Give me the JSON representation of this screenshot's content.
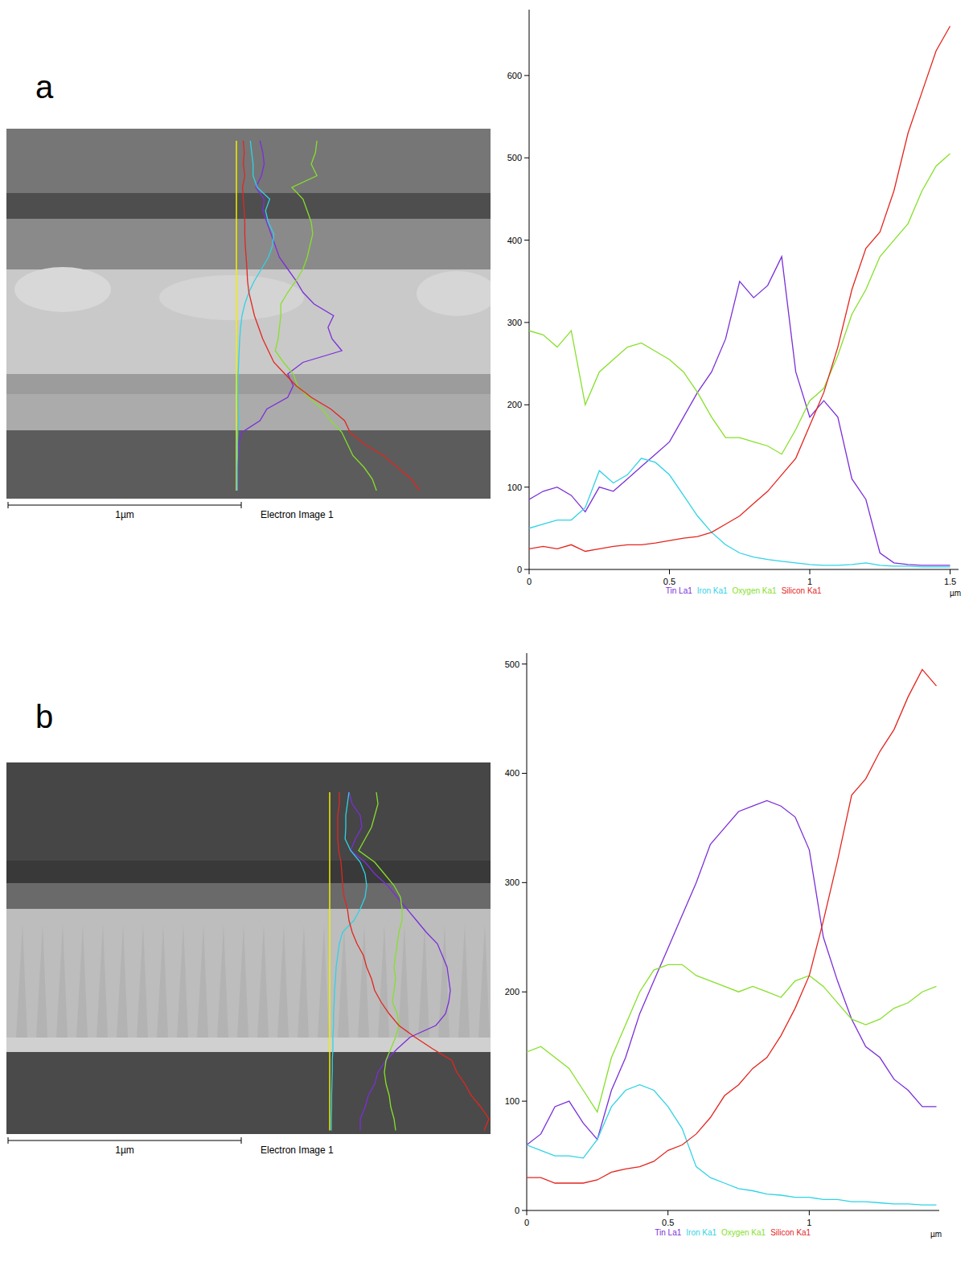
{
  "chart_data": [
    {
      "type": "line",
      "panel_label": "a",
      "image_label": "Electron Image 1",
      "scale_bar_label": "1µm",
      "x_label": "µm",
      "legend": "bottom",
      "xlim": [
        0,
        1.53
      ],
      "xticks": [
        0,
        0.5,
        1,
        1.5
      ],
      "ylim": [
        0,
        680
      ],
      "yticks": [
        0,
        100,
        200,
        300,
        400,
        500,
        600
      ],
      "x": [
        0,
        0.05,
        0.1,
        0.15,
        0.2,
        0.25,
        0.3,
        0.35,
        0.4,
        0.45,
        0.5,
        0.55,
        0.6,
        0.65,
        0.7,
        0.75,
        0.8,
        0.85,
        0.9,
        0.95,
        1,
        1.05,
        1.1,
        1.15,
        1.2,
        1.25,
        1.3,
        1.35,
        1.4,
        1.45,
        1.5
      ],
      "series": [
        {
          "name": "Tin La1",
          "color": "#7b2fd9",
          "values": [
            85,
            95,
            100,
            90,
            70,
            100,
            95,
            110,
            125,
            140,
            155,
            185,
            215,
            240,
            280,
            350,
            330,
            345,
            380,
            240,
            185,
            205,
            185,
            110,
            85,
            20,
            8,
            6,
            5,
            5,
            5
          ]
        },
        {
          "name": "Iron Ka1",
          "color": "#2fd3e6",
          "values": [
            50,
            55,
            60,
            60,
            75,
            120,
            105,
            115,
            135,
            130,
            115,
            90,
            65,
            45,
            30,
            20,
            15,
            12,
            10,
            8,
            6,
            5,
            5,
            6,
            8,
            5,
            4,
            4,
            3,
            3,
            3
          ]
        },
        {
          "name": "Oxygen Ka1",
          "color": "#86e02a",
          "values": [
            290,
            285,
            270,
            290,
            200,
            240,
            255,
            270,
            275,
            265,
            255,
            240,
            215,
            185,
            160,
            160,
            155,
            150,
            140,
            170,
            205,
            220,
            260,
            310,
            340,
            380,
            400,
            420,
            460,
            490,
            505
          ]
        },
        {
          "name": "Silicon Ka1",
          "color": "#e3261f",
          "values": [
            25,
            28,
            25,
            30,
            22,
            25,
            28,
            30,
            30,
            32,
            35,
            38,
            40,
            45,
            55,
            65,
            80,
            95,
            115,
            135,
            175,
            215,
            270,
            340,
            390,
            410,
            460,
            530,
            580,
            630,
            660
          ]
        }
      ]
    },
    {
      "type": "line",
      "panel_label": "b",
      "image_label": "Electron Image 1",
      "scale_bar_label": "1µm",
      "x_label": "µm",
      "legend": "bottom",
      "xlim": [
        0,
        1.46
      ],
      "xticks": [
        0,
        0.5,
        1
      ],
      "ylim": [
        0,
        510
      ],
      "yticks": [
        0,
        100,
        200,
        300,
        400,
        500
      ],
      "x": [
        0,
        0.05,
        0.1,
        0.15,
        0.2,
        0.25,
        0.3,
        0.35,
        0.4,
        0.45,
        0.5,
        0.55,
        0.6,
        0.65,
        0.7,
        0.75,
        0.8,
        0.85,
        0.9,
        0.95,
        1,
        1.05,
        1.1,
        1.15,
        1.2,
        1.25,
        1.3,
        1.35,
        1.4,
        1.45
      ],
      "series": [
        {
          "name": "Tin La1",
          "color": "#7b2fd9",
          "values": [
            60,
            70,
            95,
            100,
            80,
            65,
            110,
            140,
            180,
            210,
            240,
            270,
            300,
            335,
            350,
            365,
            370,
            375,
            370,
            360,
            330,
            250,
            210,
            175,
            150,
            140,
            120,
            110,
            95,
            95
          ]
        },
        {
          "name": "Iron Ka1",
          "color": "#2fd3e6",
          "values": [
            60,
            55,
            50,
            50,
            48,
            65,
            95,
            110,
            115,
            110,
            95,
            75,
            40,
            30,
            25,
            20,
            18,
            15,
            14,
            12,
            12,
            10,
            10,
            8,
            8,
            7,
            6,
            6,
            5,
            5
          ]
        },
        {
          "name": "Oxygen Ka1",
          "color": "#86e02a",
          "values": [
            145,
            150,
            140,
            130,
            110,
            90,
            140,
            170,
            200,
            220,
            225,
            225,
            215,
            210,
            205,
            200,
            205,
            200,
            195,
            210,
            215,
            205,
            190,
            175,
            170,
            175,
            185,
            190,
            200,
            205
          ]
        },
        {
          "name": "Silicon Ka1",
          "color": "#e3261f",
          "values": [
            30,
            30,
            25,
            25,
            25,
            28,
            35,
            38,
            40,
            45,
            55,
            60,
            70,
            85,
            105,
            115,
            130,
            140,
            160,
            185,
            215,
            265,
            320,
            380,
            395,
            420,
            440,
            470,
            495,
            480
          ]
        }
      ]
    }
  ]
}
